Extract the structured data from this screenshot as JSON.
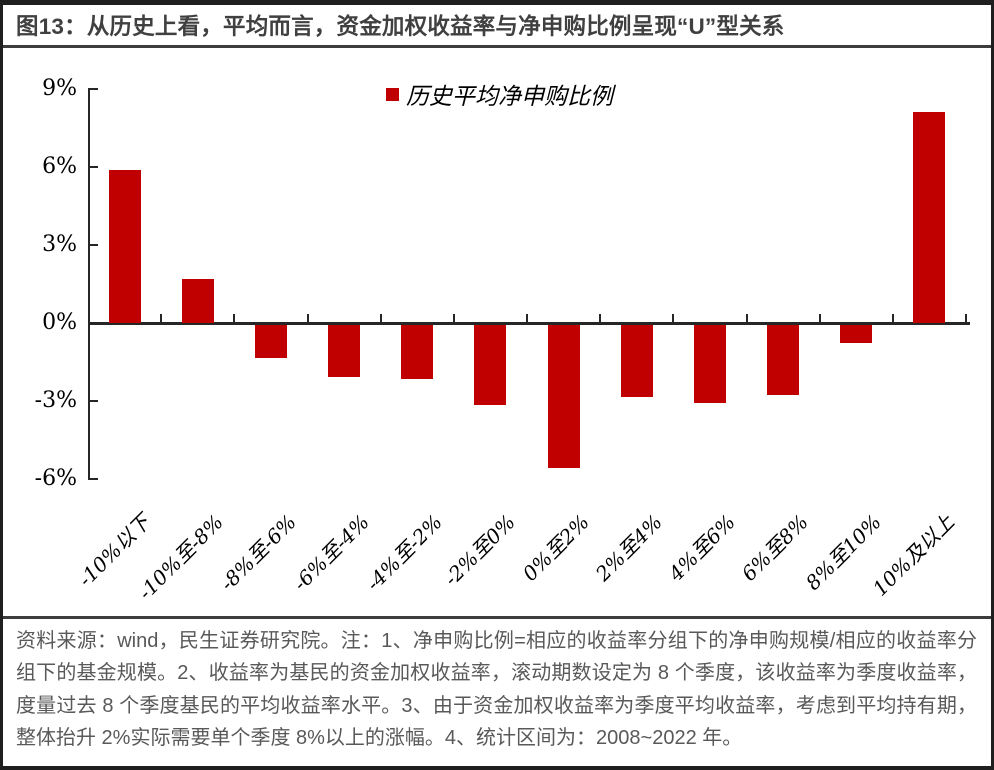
{
  "title": "图13：从历史上看，平均而言，资金加权收益率与净申购比例呈现“U”型关系",
  "legend": {
    "label": "历史平均净申购比例",
    "marker_color": "#C00000"
  },
  "chart_data": {
    "type": "bar",
    "title": "历史平均净申购比例",
    "categories": [
      "-10%以下",
      "-10%至-8%",
      "-8%至-6%",
      "-6%至-4%",
      "-4%至-2%",
      "-2%至0%",
      "0%至2%",
      "2%至4%",
      "4%至6%",
      "6%至8%",
      "8%至10%",
      "10%及以上"
    ],
    "values": [
      5.9,
      1.7,
      -1.3,
      -2.0,
      -2.1,
      -3.1,
      -5.5,
      -2.8,
      -3.0,
      -2.7,
      -0.7,
      8.1
    ],
    "xlabel": "",
    "ylabel": "",
    "ylim": [
      -6,
      9
    ],
    "yticks": [
      9,
      6,
      3,
      0,
      -3,
      -6
    ],
    "ytick_labels": [
      "9%",
      "6%",
      "3%",
      "0%",
      "-3%",
      "-6%"
    ],
    "bar_color": "#C00000",
    "axis_color": "#262626",
    "grid": false,
    "legend_position": "top-center"
  },
  "footer": {
    "text": "资料来源：wind，民生证券研究院。注：1、净申购比例=相应的收益率分组下的净申购规模/相应的收益率分组下的基金规模。2、收益率为基民的资金加权收益率，滚动期数设定为 8 个季度，该收益率为季度收益率，度量过去 8 个季度基民的平均收益率水平。3、由于资金加权收益率为季度平均收益率，考虑到平均持有期，整体抬升 2%实际需要单个季度 8%以上的涨幅。4、统计区间为：2008~2022 年。"
  },
  "colors": {
    "bar": "#C00000",
    "title_text": "#404040",
    "footer_text": "#595959",
    "border": "#1f1f1f",
    "separator": "#3d3d3d",
    "axis": "#262626"
  }
}
